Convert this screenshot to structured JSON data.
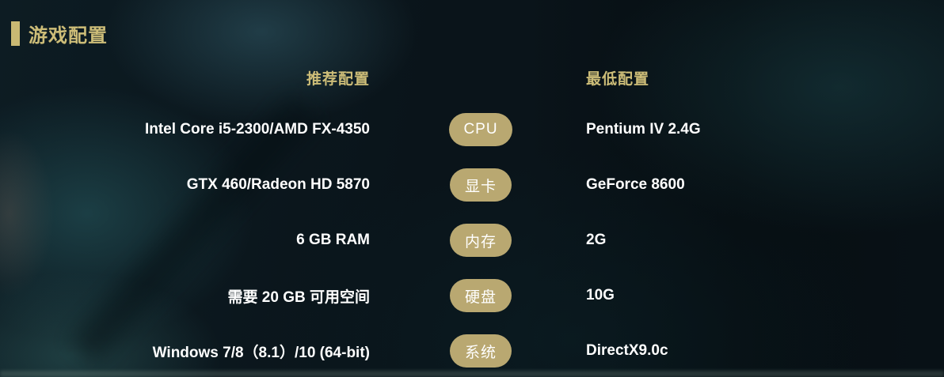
{
  "page": {
    "title": "游戏配置"
  },
  "columns": {
    "recommended": "推荐配置",
    "minimum": "最低配置"
  },
  "rows": [
    {
      "label": "CPU",
      "recommended": "Intel Core i5-2300/AMD FX-4350",
      "minimum": "Pentium IV 2.4G"
    },
    {
      "label": "显卡",
      "recommended": "GTX 460/Radeon HD 5870",
      "minimum": "GeForce 8600"
    },
    {
      "label": "内存",
      "recommended": "6 GB RAM",
      "minimum": "2G"
    },
    {
      "label": "硬盘",
      "recommended": "需要 20 GB 可用空间",
      "minimum": "10G"
    },
    {
      "label": "系统",
      "recommended": "Windows 7/8（8.1）/10 (64-bit)",
      "minimum": "DirectX9.0c"
    }
  ],
  "colors": {
    "accent_gold": "#cdbd78",
    "pill_gold": "#b9a871",
    "text_white": "#ffffff",
    "background_base": "#0a141a"
  }
}
